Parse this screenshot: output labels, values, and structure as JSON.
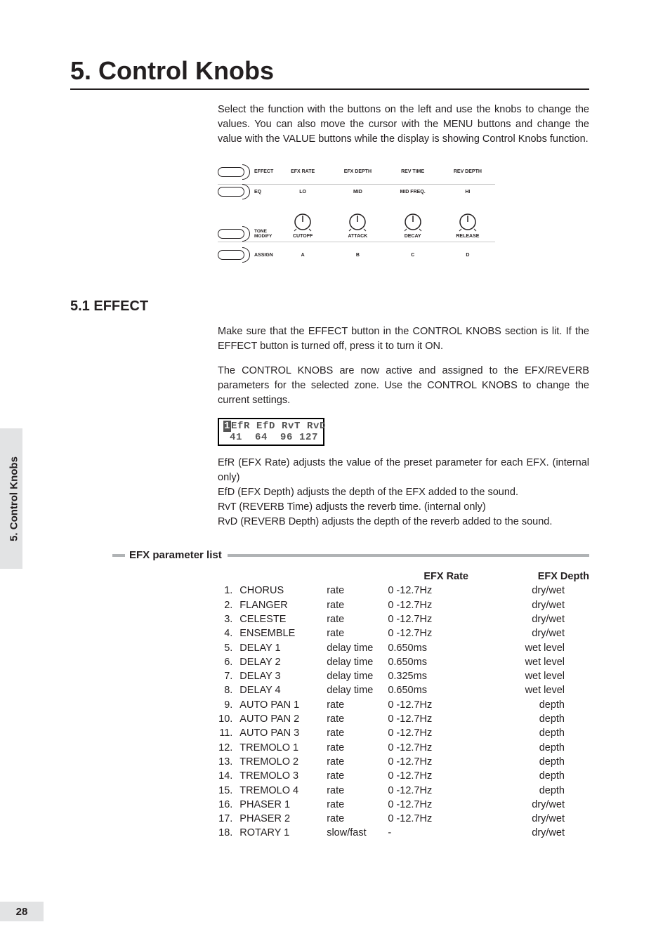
{
  "chapter": {
    "title": "5. Control Knobs",
    "intro": "Select the function with the buttons on the left and use the knobs to change the values. You can also move the cursor with the MENU buttons and change the value with the VALUE buttons while the display is showing Control Knobs function."
  },
  "panel": {
    "rows": [
      {
        "btn": "EFFECT",
        "heads": [
          "EFX RATE",
          "EFX DEPTH",
          "REV TIME",
          "REV DEPTH"
        ]
      },
      {
        "btn": "EQ",
        "heads": [
          "LO",
          "MID",
          "MID FREQ.",
          "HI"
        ],
        "knobs": true,
        "subs": [
          "CUTOFF",
          "ATTACK",
          "DECAY",
          "RELEASE"
        ]
      },
      {
        "btn": "TONE\nMODIFY"
      },
      {
        "btn": "ASSIGN",
        "heads": [
          "A",
          "B",
          "C",
          "D"
        ]
      }
    ]
  },
  "section": {
    "title": "5.1 EFFECT",
    "p1": "Make sure that the EFFECT button in the CONTROL KNOBS section is lit. If the EFFECT button is turned off, press it to turn it ON.",
    "p2": "The CONTROL KNOBS are now active and assigned to the EFX/REVERB parameters for the selected zone. Use the CONTROL KNOBS to change the current settings.",
    "lcd_top_prefix": "1",
    "lcd_top_rest": "EfR EfD RvT RvD",
    "lcd_bottom": " 41  64  96 127",
    "d1": "EfR (EFX Rate) adjusts the value of the preset parameter for each EFX. (internal only)",
    "d2": "EfD (EFX Depth) adjusts the depth of the EFX added to the sound.",
    "d3": "RvT (REVERB Time) adjusts the reverb time. (internal only)",
    "d4": "RvD (REVERB Depth) adjusts the depth of the reverb added to the sound."
  },
  "efx": {
    "heading": "EFX parameter list",
    "col_rate": "EFX Rate",
    "col_depth": "EFX Depth",
    "rows": [
      {
        "n": "1.",
        "name": "CHORUS",
        "param": "rate",
        "rate": "0 -12.7Hz",
        "depth": "dry/wet"
      },
      {
        "n": "2.",
        "name": "FLANGER",
        "param": "rate",
        "rate": "0 -12.7Hz",
        "depth": "dry/wet"
      },
      {
        "n": "3.",
        "name": "CELESTE",
        "param": "rate",
        "rate": "0 -12.7Hz",
        "depth": "dry/wet"
      },
      {
        "n": "4.",
        "name": "ENSEMBLE",
        "param": "rate",
        "rate": "0 -12.7Hz",
        "depth": "dry/wet"
      },
      {
        "n": "5.",
        "name": "DELAY 1",
        "param": "delay time",
        "rate": "0.650ms",
        "depth": "wet level"
      },
      {
        "n": "6.",
        "name": "DELAY 2",
        "param": "delay time",
        "rate": "0.650ms",
        "depth": "wet level"
      },
      {
        "n": "7.",
        "name": "DELAY 3",
        "param": "delay time",
        "rate": "0.325ms",
        "depth": "wet level"
      },
      {
        "n": "8.",
        "name": "DELAY 4",
        "param": "delay time",
        "rate": "0.650ms",
        "depth": "wet level"
      },
      {
        "n": "9.",
        "name": "AUTO PAN 1",
        "param": "rate",
        "rate": "0 -12.7Hz",
        "depth": "depth"
      },
      {
        "n": "10.",
        "name": "AUTO PAN 2",
        "param": "rate",
        "rate": "0 -12.7Hz",
        "depth": "depth"
      },
      {
        "n": "11.",
        "name": "AUTO PAN 3",
        "param": "rate",
        "rate": "0 -12.7Hz",
        "depth": "depth"
      },
      {
        "n": "12.",
        "name": "TREMOLO 1",
        "param": "rate",
        "rate": "0 -12.7Hz",
        "depth": "depth"
      },
      {
        "n": "13.",
        "name": "TREMOLO 2",
        "param": "rate",
        "rate": "0 -12.7Hz",
        "depth": "depth"
      },
      {
        "n": "14.",
        "name": "TREMOLO 3",
        "param": "rate",
        "rate": "0 -12.7Hz",
        "depth": "depth"
      },
      {
        "n": "15.",
        "name": "TREMOLO 4",
        "param": "rate",
        "rate": "0 -12.7Hz",
        "depth": "depth"
      },
      {
        "n": "16.",
        "name": "PHASER 1",
        "param": "rate",
        "rate": "0 -12.7Hz",
        "depth": "dry/wet"
      },
      {
        "n": "17.",
        "name": "PHASER 2",
        "param": "rate",
        "rate": "0 -12.7Hz",
        "depth": "dry/wet"
      },
      {
        "n": "18.",
        "name": "ROTARY 1",
        "param": "slow/fast",
        "rate": "-",
        "depth": "dry/wet"
      }
    ]
  },
  "side_tab": "5. Control Knobs",
  "page_number": "28"
}
